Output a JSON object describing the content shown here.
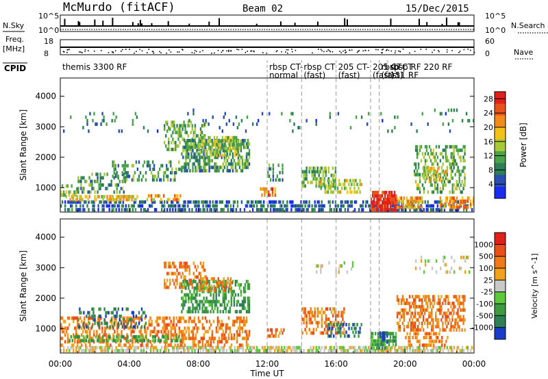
{
  "header": {
    "station": "McMurdo (fitACF)",
    "beam": "Beam 02",
    "date": "15/Dec/2015"
  },
  "strips": {
    "nsky_label": "N.Sky",
    "nsearch_label": "N.Search",
    "nsky_ticks": [
      "10^5",
      "10^0"
    ],
    "nsearch_ticks": [
      "10^5",
      "10^0"
    ],
    "freq_label": "Freq.",
    "freq_unit": "[MHz]",
    "freq_ticks": [
      "18",
      "8"
    ],
    "nave_label": "Nave",
    "nave_ticks": [
      "60",
      "0"
    ],
    "cpid_label": "CPID"
  },
  "cpid_segments": [
    {
      "start_hour": 0.0,
      "line1": "themis 3300 RF",
      "line2": ""
    },
    {
      "start_hour": 12.0,
      "line1": "rbsp CT-",
      "line2": "normal"
    },
    {
      "start_hour": 14.0,
      "line1": "rbsp CT",
      "line2": "(fast)"
    },
    {
      "start_hour": 16.0,
      "line1": "205 CT-",
      "line2": "(fast)"
    },
    {
      "start_hour": 18.0,
      "line1": "205 CT",
      "line2": "(fast)"
    },
    {
      "start_hour": 18.5,
      "line1": "rbsp CT",
      "line2": "(fast)"
    },
    {
      "start_hour": 19.0,
      "line1": "rbsp RF 220 RF",
      "line2": "151 RF"
    }
  ],
  "chart_data": [
    {
      "type": "heatmap",
      "title": "",
      "xlabel": "Time UT",
      "ylabel": "Slant Range [km]",
      "x_ticks": [
        "00:00",
        "04:00",
        "08:00",
        "12:00",
        "16:00",
        "20:00",
        "00:00"
      ],
      "xlim_hours": [
        0,
        24
      ],
      "y_ticks": [
        1000,
        2000,
        3000,
        4000
      ],
      "ylim": [
        200,
        4600
      ],
      "colorbar_label": "Power [dB]",
      "colorbar_ticks": [
        4,
        8,
        12,
        16,
        20,
        24,
        28
      ],
      "colorbar_range": [
        0,
        30
      ],
      "colorbar_colors": [
        "#1a2cf0",
        "#2a4fb0",
        "#2f7f56",
        "#4aa34a",
        "#a8c83a",
        "#f2c21a",
        "#f08a1a",
        "#e8531a",
        "#e0201a"
      ],
      "dashed_lines_hours": [
        12.0,
        14.0,
        16.0,
        18.0,
        18.5
      ],
      "regions": [
        {
          "t0": 0.0,
          "t1": 24.0,
          "r0": 220,
          "r1": 600,
          "value": 6,
          "density": 0.55
        },
        {
          "t0": 0.3,
          "t1": 4.5,
          "r0": 550,
          "r1": 750,
          "value": 18,
          "density": 0.5
        },
        {
          "t0": 0.0,
          "t1": 1.0,
          "r0": 700,
          "r1": 1100,
          "value": 14,
          "density": 0.45
        },
        {
          "t0": 1.0,
          "t1": 3.8,
          "r0": 800,
          "r1": 1500,
          "value": 10,
          "density": 0.35
        },
        {
          "t0": 3.0,
          "t1": 7.0,
          "r0": 1200,
          "r1": 1900,
          "value": 10,
          "density": 0.35
        },
        {
          "t0": 5.0,
          "t1": 7.0,
          "r0": 550,
          "r1": 800,
          "value": 20,
          "density": 0.5
        },
        {
          "t0": 6.0,
          "t1": 8.5,
          "r0": 2200,
          "r1": 3200,
          "value": 12,
          "density": 0.45
        },
        {
          "t0": 7.0,
          "t1": 11.0,
          "r0": 1500,
          "r1": 2600,
          "value": 10,
          "density": 0.55
        },
        {
          "t0": 8.0,
          "t1": 10.5,
          "r0": 2000,
          "r1": 2700,
          "value": 14,
          "density": 0.5
        },
        {
          "t0": 11.5,
          "t1": 12.5,
          "r0": 700,
          "r1": 1000,
          "value": 24,
          "density": 0.5
        },
        {
          "t0": 12.0,
          "t1": 13.0,
          "r0": 1200,
          "r1": 1800,
          "value": 10,
          "density": 0.4
        },
        {
          "t0": 14.0,
          "t1": 16.0,
          "r0": 1000,
          "r1": 1700,
          "value": 12,
          "density": 0.5
        },
        {
          "t0": 15.0,
          "t1": 17.5,
          "r0": 800,
          "r1": 1300,
          "value": 16,
          "density": 0.45
        },
        {
          "t0": 18.0,
          "t1": 19.5,
          "r0": 220,
          "r1": 900,
          "value": 28,
          "density": 0.85
        },
        {
          "t0": 19.5,
          "t1": 21.0,
          "r0": 300,
          "r1": 700,
          "value": 20,
          "density": 0.6
        },
        {
          "t0": 20.5,
          "t1": 23.5,
          "r0": 800,
          "r1": 2400,
          "value": 12,
          "density": 0.4
        },
        {
          "t0": 21.0,
          "t1": 22.5,
          "r0": 1200,
          "r1": 1700,
          "value": 18,
          "density": 0.45
        },
        {
          "t0": 22.0,
          "t1": 24.0,
          "r0": 300,
          "r1": 700,
          "value": 22,
          "density": 0.55
        },
        {
          "t0": 0.0,
          "t1": 24.0,
          "r0": 2800,
          "r1": 3600,
          "value": 8,
          "density": 0.05
        }
      ]
    },
    {
      "type": "heatmap",
      "title": "",
      "xlabel": "Time UT",
      "ylabel": "Slant Range [km]",
      "x_ticks": [
        "00:00",
        "04:00",
        "08:00",
        "12:00",
        "16:00",
        "20:00",
        "00:00"
      ],
      "xlim_hours": [
        0,
        24
      ],
      "y_ticks": [
        1000,
        2000,
        3000,
        4000
      ],
      "ylim": [
        200,
        4600
      ],
      "colorbar_label": "Velocity [m s^-1]",
      "colorbar_ticks": [
        "1000",
        "500",
        "100",
        "25",
        "-25",
        "-100",
        "-500",
        "-1000"
      ],
      "colorbar_colors": [
        "#1a3cc8",
        "#2f7f56",
        "#3f9a3f",
        "#5cc83a",
        "#c8c8c8",
        "#f0a21a",
        "#f07a1a",
        "#e8501a",
        "#e0201a"
      ],
      "dashed_lines_hours": [
        12.0,
        14.0,
        16.0,
        18.0,
        18.5
      ],
      "regions": [
        {
          "t0": 0.0,
          "t1": 24.0,
          "r0": 220,
          "r1": 420,
          "value": 4,
          "density": 0.6
        },
        {
          "t0": 0.0,
          "t1": 11.0,
          "r0": 400,
          "r1": 1400,
          "value": 6,
          "density": 0.4
        },
        {
          "t0": 0.5,
          "t1": 7.0,
          "r0": 550,
          "r1": 800,
          "value": 2,
          "density": 0.5
        },
        {
          "t0": 1.0,
          "t1": 5.0,
          "r0": 1000,
          "r1": 1700,
          "value": 1,
          "density": 0.3
        },
        {
          "t0": 6.0,
          "t1": 8.5,
          "r0": 2300,
          "r1": 3200,
          "value": 6,
          "density": 0.45
        },
        {
          "t0": 7.0,
          "t1": 11.0,
          "r0": 1500,
          "r1": 2600,
          "value": 2,
          "density": 0.5
        },
        {
          "t0": 8.0,
          "t1": 10.0,
          "r0": 2200,
          "r1": 2700,
          "value": 6,
          "density": 0.5
        },
        {
          "t0": 12.0,
          "t1": 13.0,
          "r0": 700,
          "r1": 1000,
          "value": 6,
          "density": 0.5
        },
        {
          "t0": 14.0,
          "t1": 16.5,
          "r0": 800,
          "r1": 1700,
          "value": 6,
          "density": 0.5
        },
        {
          "t0": 15.5,
          "t1": 17.5,
          "r0": 700,
          "r1": 1200,
          "value": 1,
          "density": 0.4
        },
        {
          "t0": 18.0,
          "t1": 19.5,
          "r0": 300,
          "r1": 900,
          "value": 2,
          "density": 0.7
        },
        {
          "t0": 18.5,
          "t1": 19.0,
          "r0": 500,
          "r1": 900,
          "value": 0,
          "density": 0.6
        },
        {
          "t0": 19.5,
          "t1": 23.5,
          "r0": 900,
          "r1": 2100,
          "value": 6,
          "density": 0.5
        },
        {
          "t0": 20.0,
          "t1": 22.5,
          "r0": 400,
          "r1": 900,
          "value": 6,
          "density": 0.45
        },
        {
          "t0": 14.5,
          "t1": 17.0,
          "r0": 2800,
          "r1": 3200,
          "value": 4,
          "density": 0.15
        },
        {
          "t0": 20.5,
          "t1": 24.0,
          "r0": 2800,
          "r1": 3400,
          "value": 4,
          "density": 0.2
        }
      ]
    }
  ]
}
